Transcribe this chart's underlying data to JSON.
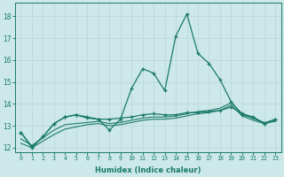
{
  "xlabel": "Humidex (Indice chaleur)",
  "xlim": [
    -0.5,
    23.5
  ],
  "ylim": [
    11.8,
    18.6
  ],
  "yticks": [
    12,
    13,
    14,
    15,
    16,
    17,
    18
  ],
  "xticks": [
    0,
    1,
    2,
    3,
    4,
    5,
    6,
    7,
    8,
    9,
    10,
    11,
    12,
    13,
    14,
    15,
    16,
    17,
    18,
    19,
    20,
    21,
    22,
    23
  ],
  "bg_color": "#cce8e8",
  "grid_color": "#b8d8d8",
  "line_color": "#1a7a6a",
  "x": [
    0,
    1,
    2,
    3,
    4,
    5,
    6,
    7,
    8,
    9,
    10,
    11,
    12,
    13,
    14,
    15,
    16,
    17,
    18,
    19,
    20,
    21,
    22,
    23
  ],
  "series_spike": [
    12.7,
    12.0,
    12.5,
    13.1,
    13.4,
    13.5,
    13.4,
    13.3,
    12.8,
    13.3,
    14.7,
    15.6,
    15.4,
    14.6,
    17.1,
    18.1,
    16.3,
    15.85,
    15.1,
    14.1,
    13.5,
    13.35,
    13.1,
    13.3
  ],
  "series_flat_marker": [
    12.7,
    12.05,
    12.5,
    13.1,
    13.4,
    13.5,
    13.35,
    13.3,
    13.3,
    13.35,
    13.4,
    13.5,
    13.55,
    13.5,
    13.5,
    13.6,
    13.6,
    13.65,
    13.7,
    13.85,
    13.55,
    13.4,
    13.1,
    13.3
  ],
  "series_smooth1": [
    12.4,
    12.1,
    12.45,
    12.8,
    13.05,
    13.1,
    13.15,
    13.2,
    13.1,
    13.15,
    13.25,
    13.35,
    13.4,
    13.4,
    13.45,
    13.55,
    13.65,
    13.7,
    13.8,
    14.05,
    13.55,
    13.35,
    13.15,
    13.25
  ],
  "series_smooth2": [
    12.2,
    12.0,
    12.3,
    12.6,
    12.85,
    12.95,
    13.05,
    13.1,
    13.0,
    13.05,
    13.15,
    13.25,
    13.3,
    13.3,
    13.35,
    13.45,
    13.55,
    13.6,
    13.7,
    13.95,
    13.45,
    13.25,
    13.1,
    13.2
  ]
}
